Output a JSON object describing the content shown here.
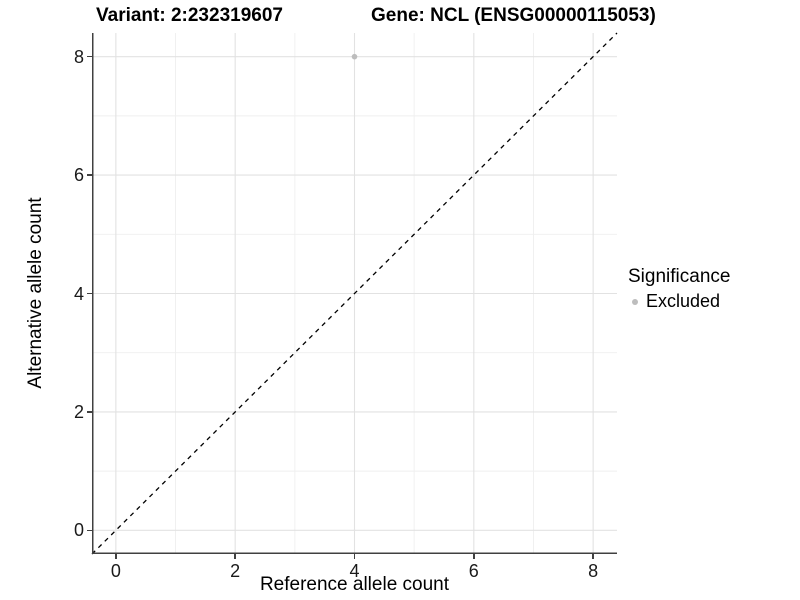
{
  "header": {
    "variant_title": "Variant: 2:232319607",
    "gene_title": "Gene: NCL (ENSG00000115053)"
  },
  "chart_data": {
    "type": "scatter",
    "title_left": "Variant: 2:232319607",
    "title_right": "Gene: NCL (ENSG00000115053)",
    "xlabel": "Reference allele count",
    "ylabel": "Alternative allele count",
    "xlim": [
      -0.4,
      8.4
    ],
    "ylim": [
      -0.4,
      8.4
    ],
    "x_ticks": [
      0,
      2,
      4,
      6,
      8
    ],
    "y_ticks": [
      0,
      2,
      4,
      6,
      8
    ],
    "x_minor_ticks": [
      1,
      3,
      5,
      7
    ],
    "y_minor_ticks": [
      1,
      3,
      5,
      7
    ],
    "grid": true,
    "points": [
      {
        "x": 4,
        "y": 8,
        "series": "Excluded"
      }
    ],
    "identity_line": {
      "slope": 1,
      "intercept": 0,
      "style": "dashed"
    },
    "legend": {
      "title": "Significance",
      "position": "right",
      "entries": [
        {
          "label": "Excluded",
          "color": "#bdbdbd"
        }
      ]
    },
    "colors": {
      "point": "#bdbdbd",
      "major_grid": "#e2e2e2",
      "minor_grid": "#efefef",
      "axis_line": "#404040",
      "dashed_line": "#000000",
      "tick_text": "#1a1a1a"
    }
  }
}
